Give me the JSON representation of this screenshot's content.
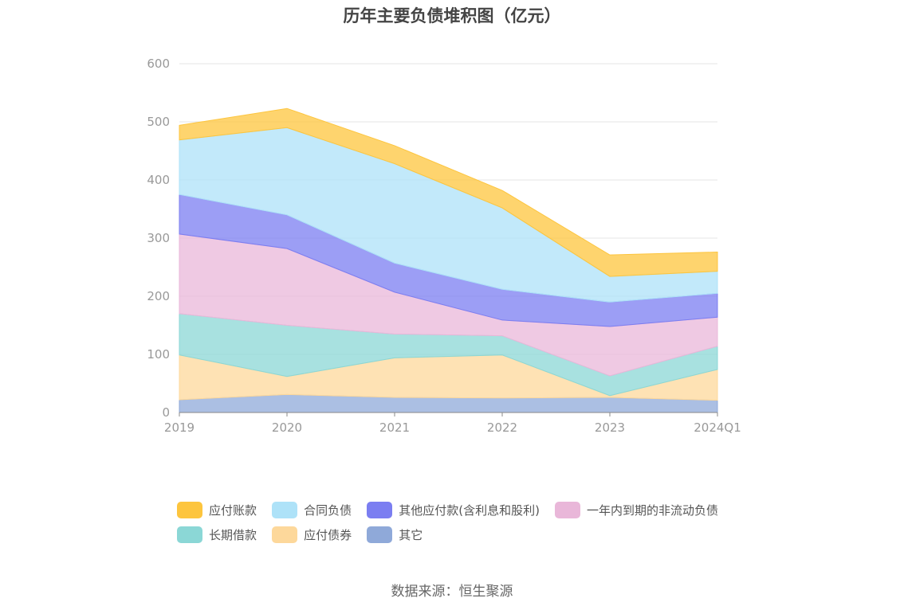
{
  "title": "历年主要负债堆积图（亿元）",
  "source": "数据来源：恒生聚源",
  "chart_data": {
    "type": "area",
    "stacked": true,
    "categories": [
      "2019",
      "2020",
      "2021",
      "2022",
      "2023",
      "2024Q1"
    ],
    "ylim": [
      0,
      600
    ],
    "yticks": [
      0,
      100,
      200,
      300,
      400,
      500,
      600
    ],
    "grid": true,
    "legend_position": "bottom",
    "series": [
      {
        "name": "其它",
        "color": "#8fa9d9",
        "values": [
          22,
          31,
          26,
          25,
          26,
          21
        ]
      },
      {
        "name": "应付债券",
        "color": "#fdd89b",
        "values": [
          77,
          31,
          68,
          74,
          3,
          53
        ]
      },
      {
        "name": "长期借款",
        "color": "#8bd7d6",
        "values": [
          71,
          88,
          41,
          33,
          34,
          40
        ]
      },
      {
        "name": "一年内到期的非流动负债",
        "color": "#e9b7d9",
        "values": [
          137,
          132,
          72,
          27,
          85,
          50
        ]
      },
      {
        "name": "其他应付款(含利息和股利)",
        "color": "#7b7ef1",
        "values": [
          68,
          58,
          50,
          53,
          42,
          41
        ]
      },
      {
        "name": "合同负债",
        "color": "#aee2f8",
        "values": [
          94,
          150,
          171,
          140,
          44,
          38
        ]
      },
      {
        "name": "应付账款",
        "color": "#fdc53e",
        "values": [
          25,
          33,
          31,
          30,
          37,
          33
        ]
      }
    ]
  },
  "legend": [
    {
      "label": "应付账款",
      "color": "#fdc53e"
    },
    {
      "label": "合同负债",
      "color": "#aee2f8"
    },
    {
      "label": "其他应付款(含利息和股利)",
      "color": "#7b7ef1"
    },
    {
      "label": "一年内到期的非流动负债",
      "color": "#e9b7d9"
    },
    {
      "label": "长期借款",
      "color": "#8bd7d6"
    },
    {
      "label": "应付债券",
      "color": "#fdd89b"
    },
    {
      "label": "其它",
      "color": "#8fa9d9"
    }
  ]
}
